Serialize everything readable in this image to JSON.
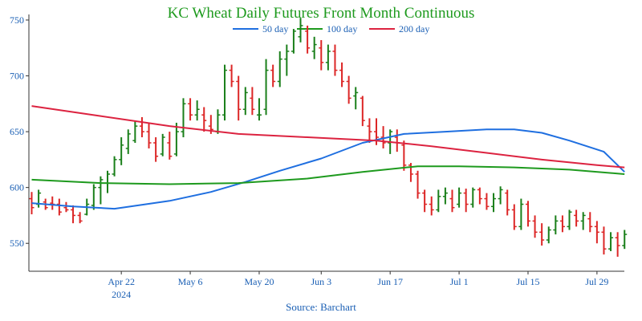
{
  "chart_data": {
    "type": "line",
    "title": "KC Wheat Daily Futures Front Month Continuous",
    "source": "Source: Barchart",
    "ylim": [
      525,
      755
    ],
    "yticks": [
      550,
      600,
      650,
      700,
      750
    ],
    "grid": false,
    "legend_position": "top-center",
    "colors": {
      "up": "#1a7f1a",
      "down": "#dc2626",
      "ma50": "#1f6fe0",
      "ma100": "#1e9a1e",
      "ma200": "#dc2340",
      "axis": "#333333",
      "text": "#1a5fb4"
    },
    "xticks": [
      {
        "index": 13,
        "label": "Apr 22",
        "sublabel": "2024"
      },
      {
        "index": 23,
        "label": "May 6",
        "sublabel": ""
      },
      {
        "index": 33,
        "label": "May 20",
        "sublabel": ""
      },
      {
        "index": 42,
        "label": "Jun 3",
        "sublabel": ""
      },
      {
        "index": 52,
        "label": "Jun 17",
        "sublabel": ""
      },
      {
        "index": 62,
        "label": "Jul 1",
        "sublabel": ""
      },
      {
        "index": 72,
        "label": "Jul 15",
        "sublabel": ""
      },
      {
        "index": 82,
        "label": "Jul 29",
        "sublabel": ""
      }
    ],
    "n_bars": 87,
    "ohlc": [
      [
        590,
        596,
        576,
        582
      ],
      [
        585,
        598,
        582,
        595
      ],
      [
        587,
        590,
        580,
        582
      ],
      [
        586,
        592,
        580,
        585
      ],
      [
        585,
        590,
        575,
        578
      ],
      [
        582,
        587,
        578,
        580
      ],
      [
        580,
        584,
        568,
        575
      ],
      [
        575,
        578,
        568,
        570
      ],
      [
        576,
        590,
        575,
        585
      ],
      [
        584,
        603,
        580,
        600
      ],
      [
        600,
        610,
        585,
        607
      ],
      [
        604,
        615,
        595,
        612
      ],
      [
        612,
        628,
        610,
        625
      ],
      [
        625,
        645,
        620,
        638
      ],
      [
        635,
        652,
        630,
        648
      ],
      [
        642,
        660,
        640,
        655
      ],
      [
        655,
        663,
        645,
        650
      ],
      [
        650,
        658,
        635,
        640
      ],
      [
        640,
        645,
        623,
        628
      ],
      [
        630,
        648,
        628,
        645
      ],
      [
        640,
        650,
        625,
        628
      ],
      [
        630,
        658,
        628,
        650
      ],
      [
        650,
        680,
        645,
        675
      ],
      [
        675,
        680,
        660,
        665
      ],
      [
        665,
        678,
        660,
        670
      ],
      [
        665,
        672,
        650,
        660
      ],
      [
        655,
        665,
        648,
        652
      ],
      [
        650,
        670,
        648,
        665
      ],
      [
        665,
        710,
        660,
        705
      ],
      [
        705,
        710,
        690,
        695
      ],
      [
        695,
        700,
        660,
        670
      ],
      [
        670,
        690,
        665,
        685
      ],
      [
        680,
        690,
        665,
        670
      ],
      [
        665,
        680,
        660,
        665
      ],
      [
        670,
        715,
        665,
        705
      ],
      [
        705,
        710,
        690,
        695
      ],
      [
        695,
        722,
        690,
        715
      ],
      [
        715,
        728,
        700,
        722
      ],
      [
        722,
        742,
        720,
        740
      ],
      [
        735,
        752,
        730,
        745
      ],
      [
        740,
        745,
        720,
        725
      ],
      [
        722,
        735,
        715,
        728
      ],
      [
        725,
        732,
        705,
        712
      ],
      [
        712,
        728,
        705,
        722
      ],
      [
        722,
        728,
        700,
        705
      ],
      [
        705,
        712,
        690,
        695
      ],
      [
        695,
        700,
        675,
        680
      ],
      [
        682,
        690,
        670,
        685
      ],
      [
        680,
        682,
        655,
        660
      ],
      [
        655,
        662,
        640,
        650
      ],
      [
        650,
        662,
        638,
        645
      ],
      [
        645,
        655,
        635,
        640
      ],
      [
        640,
        652,
        630,
        650
      ],
      [
        645,
        652,
        632,
        640
      ],
      [
        638,
        642,
        615,
        620
      ],
      [
        620,
        622,
        605,
        612
      ],
      [
        612,
        615,
        590,
        595
      ],
      [
        595,
        598,
        578,
        585
      ],
      [
        585,
        592,
        575,
        580
      ],
      [
        580,
        598,
        578,
        592
      ],
      [
        592,
        600,
        585,
        595
      ],
      [
        590,
        598,
        578,
        582
      ],
      [
        585,
        600,
        582,
        595
      ],
      [
        595,
        599,
        578,
        585
      ],
      [
        585,
        600,
        582,
        598
      ],
      [
        598,
        600,
        585,
        590
      ],
      [
        590,
        595,
        580,
        583
      ],
      [
        583,
        595,
        578,
        590
      ],
      [
        590,
        601,
        585,
        598
      ],
      [
        595,
        598,
        575,
        580
      ],
      [
        580,
        585,
        562,
        565
      ],
      [
        565,
        590,
        562,
        585
      ],
      [
        585,
        588,
        565,
        570
      ],
      [
        570,
        575,
        555,
        560
      ],
      [
        560,
        568,
        548,
        553
      ],
      [
        553,
        565,
        550,
        562
      ],
      [
        562,
        575,
        558,
        570
      ],
      [
        570,
        575,
        560,
        565
      ],
      [
        565,
        580,
        562,
        578
      ],
      [
        575,
        580,
        565,
        570
      ],
      [
        570,
        578,
        562,
        575
      ],
      [
        572,
        578,
        560,
        565
      ],
      [
        565,
        570,
        550,
        560
      ],
      [
        560,
        565,
        540,
        545
      ],
      [
        545,
        560,
        543,
        555
      ],
      [
        555,
        560,
        538,
        548
      ],
      [
        548,
        562,
        545,
        558
      ]
    ],
    "series": [
      {
        "name": "50 day",
        "color": "#1f6fe0",
        "points": [
          [
            0,
            586
          ],
          [
            6,
            583
          ],
          [
            12,
            581
          ],
          [
            20,
            588
          ],
          [
            26,
            596
          ],
          [
            31,
            605
          ],
          [
            36,
            615
          ],
          [
            42,
            626
          ],
          [
            48,
            640
          ],
          [
            54,
            648
          ],
          [
            60,
            650
          ],
          [
            66,
            652
          ],
          [
            70,
            652
          ],
          [
            74,
            649
          ],
          [
            78,
            642
          ],
          [
            83,
            632
          ],
          [
            86,
            614
          ]
        ]
      },
      {
        "name": "100 day",
        "color": "#1e9a1e",
        "points": [
          [
            0,
            607
          ],
          [
            10,
            604
          ],
          [
            20,
            603
          ],
          [
            30,
            604
          ],
          [
            40,
            608
          ],
          [
            48,
            614
          ],
          [
            56,
            619
          ],
          [
            62,
            619
          ],
          [
            70,
            618
          ],
          [
            78,
            616
          ],
          [
            86,
            612
          ]
        ]
      },
      {
        "name": "200 day",
        "color": "#dc2340",
        "points": [
          [
            0,
            673
          ],
          [
            10,
            664
          ],
          [
            20,
            655
          ],
          [
            30,
            648
          ],
          [
            40,
            645
          ],
          [
            50,
            642
          ],
          [
            58,
            637
          ],
          [
            66,
            631
          ],
          [
            74,
            625
          ],
          [
            82,
            620
          ],
          [
            86,
            618
          ]
        ]
      }
    ]
  }
}
